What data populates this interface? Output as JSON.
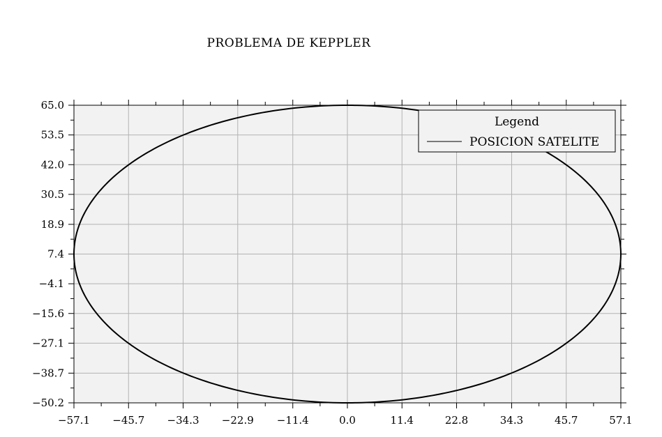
{
  "chart_data": {
    "type": "line",
    "title": "PROBLEMA DE KEPPLER",
    "xlabel": "",
    "ylabel": "",
    "xlim": [
      -57.1,
      57.1
    ],
    "ylim": [
      -50.2,
      65.0
    ],
    "grid": true,
    "background": "#f2f2f2",
    "grid_color": "#b3b3b3",
    "line_color": "#000000",
    "x_ticks": [
      "-57.1",
      "-45.7",
      "-34.3",
      "-22.9",
      "-11.4",
      "0.0",
      "11.4",
      "22.8",
      "34.3",
      "45.7",
      "57.1"
    ],
    "x_tick_values": [
      -57.1,
      -45.7,
      -34.3,
      -22.9,
      -11.4,
      0.0,
      11.4,
      22.8,
      34.3,
      45.7,
      57.1
    ],
    "y_ticks": [
      "65.0",
      "53.5",
      "42.0",
      "30.5",
      "18.9",
      "7.4",
      "-4.1",
      "-15.6",
      "-27.1",
      "-38.7",
      "-50.2"
    ],
    "y_tick_values": [
      65.0,
      53.5,
      42.0,
      30.5,
      18.9,
      7.4,
      -4.1,
      -15.6,
      -27.1,
      -38.7,
      -50.2
    ],
    "legend": {
      "title": "Legend",
      "placement": "top-right",
      "entries": [
        "POSICION SATELITE"
      ]
    },
    "series": [
      {
        "name": "POSICION SATELITE",
        "kind": "ellipse",
        "center": [
          0.0,
          7.4
        ],
        "semi_axis_x": 57.1,
        "semi_axis_y": 57.6
      }
    ]
  }
}
